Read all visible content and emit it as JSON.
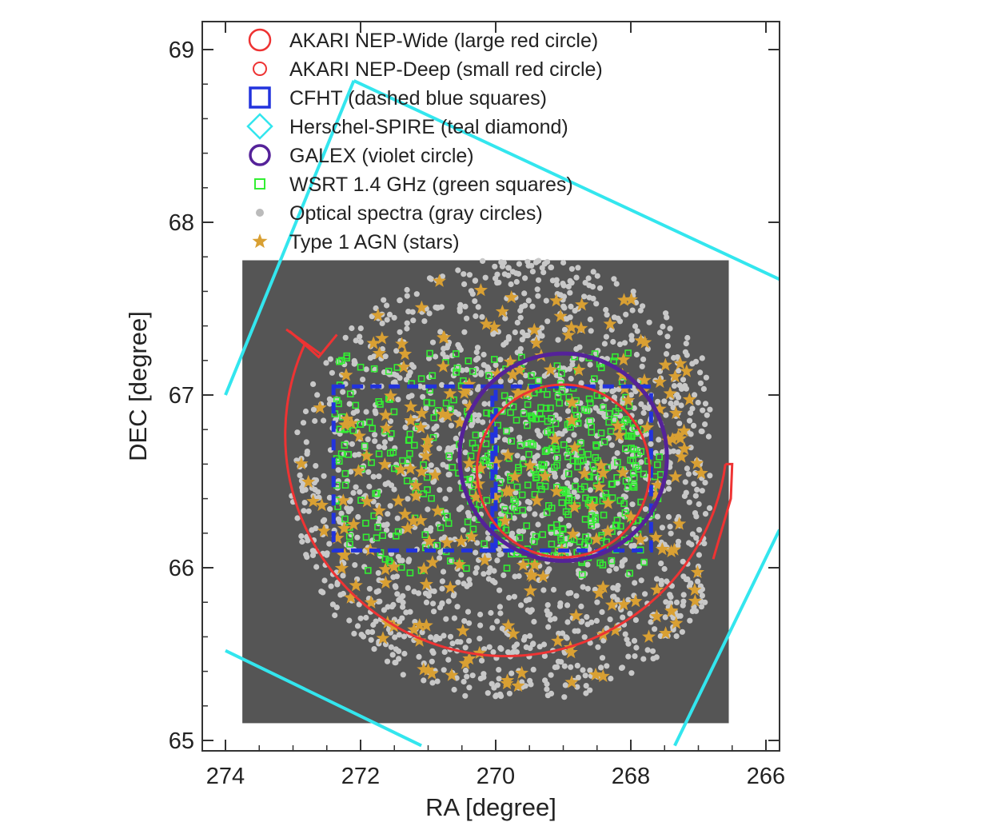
{
  "chart_data": {
    "type": "scatter",
    "xlabel": "RA [degree]",
    "ylabel": "DEC [degree]",
    "xlim": [
      274.0,
      265.8
    ],
    "ylim": [
      65.0,
      69.1
    ],
    "x_ticks": [
      "274",
      "272",
      "270",
      "268",
      "266"
    ],
    "y_ticks": [
      "65",
      "66",
      "67",
      "68",
      "69"
    ],
    "legend_position": "top-left",
    "legend": [
      {
        "label": "AKARI NEP-Wide (large red circle)",
        "marker": "circle-large",
        "color": "#ee3333"
      },
      {
        "label": "AKARI NEP-Deep (small red circle)",
        "marker": "circle-small",
        "color": "#ee3333"
      },
      {
        "label": "CFHT (dashed blue squares)",
        "marker": "square",
        "color": "#2233dd"
      },
      {
        "label": "Herschel-SPIRE (teal diamond)",
        "marker": "diamond",
        "color": "#33e6ee"
      },
      {
        "label": "GALEX (violet circle)",
        "marker": "circle",
        "color": "#552299"
      },
      {
        "label": "WSRT 1.4 GHz (green squares)",
        "marker": "square-small",
        "color": "#33ee33"
      },
      {
        "label": "Optical spectra (gray circles)",
        "marker": "dot",
        "color": "#bbbbbb"
      },
      {
        "label": "Type 1 AGN (stars)",
        "marker": "star",
        "color": "#d9a033"
      }
    ],
    "regions": {
      "background_field": {
        "ra": [
          273.75,
          266.55
        ],
        "dec": [
          65.1,
          67.78
        ],
        "color": "#555555"
      },
      "akari_wide": {
        "ra_center": 269.7,
        "dec_center": 66.5,
        "radius_deg_dec": 1.28,
        "color": "#ee3333"
      },
      "akari_deep": {
        "ra_center": 269.0,
        "dec_center": 66.56,
        "radius_deg_dec": 0.5,
        "color": "#ee3333"
      },
      "galex": {
        "ra_center": 269.0,
        "dec_center": 66.64,
        "radius_deg_dec": 0.6,
        "color": "#552299"
      },
      "cfht_fields": [
        {
          "ra": [
            272.4,
            270.0
          ],
          "dec": [
            66.1,
            67.05
          ]
        },
        {
          "ra": [
            270.05,
            267.7
          ],
          "dec": [
            66.1,
            67.05
          ]
        }
      ],
      "herschel_spire_edges": [
        {
          "ra": [
            274.0,
            272.1
          ],
          "dec": [
            67.0,
            68.82
          ]
        },
        {
          "ra": [
            272.1,
            265.8
          ],
          "dec": [
            68.82,
            67.67
          ]
        },
        {
          "ra": [
            274.0,
            271.1
          ],
          "dec": [
            65.52,
            64.97
          ]
        },
        {
          "ra": [
            267.35,
            265.8
          ],
          "dec": [
            64.97,
            66.22
          ]
        }
      ]
    },
    "series": [
      {
        "name": "Optical spectra (gray circles)",
        "x_range": [
          273.4,
          266.8
        ],
        "y_range": [
          65.25,
          67.78
        ],
        "approx_count": 1500,
        "color": "#c8c8c8"
      },
      {
        "name": "WSRT 1.4 GHz (green squares)",
        "x_range": [
          272.4,
          267.8
        ],
        "y_range": [
          65.95,
          67.25
        ],
        "approx_count": 480,
        "color": "#33ee33"
      },
      {
        "name": "Type 1 AGN (stars)",
        "x_range": [
          273.3,
          266.9
        ],
        "y_range": [
          65.3,
          67.7
        ],
        "approx_count": 230,
        "color": "#d9a033"
      }
    ]
  }
}
